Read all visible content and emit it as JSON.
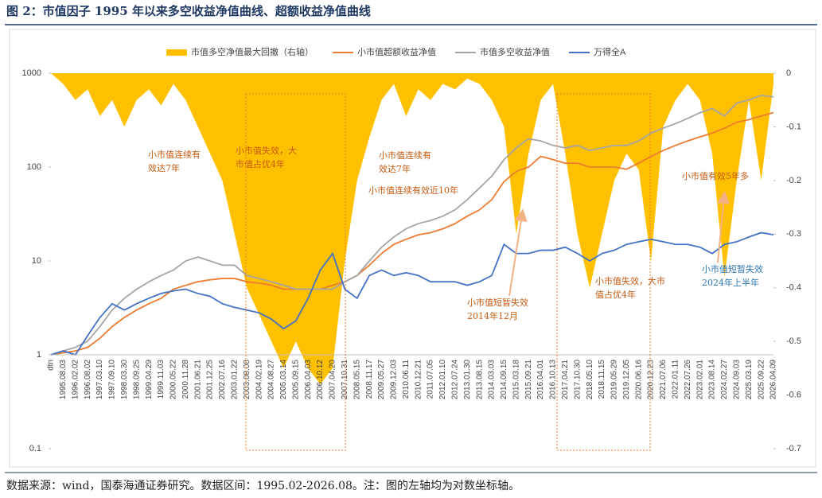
{
  "chart_data": {
    "type": "line",
    "title": "图 2：市值因子 1995 年以来多空收益净值曲线、超额收益净值曲线",
    "source": "数据来源：wind，国泰海通证券研究。数据区间：1995.02-2026.08。注：图的左轴均为对数坐标轴。",
    "categories": [
      "dtn",
      "1995.08.03",
      "1996.02.02",
      "1996.08.02",
      "1997.03.10",
      "1997.09.10",
      "1998.03.30",
      "1998.09.25",
      "1999.04.29",
      "1999.11.03",
      "2000.05.22",
      "2000.11.28",
      "2001.06.21",
      "2001.12.25",
      "2002.07.16",
      "2003.01.22",
      "2003.08.08",
      "2004.02.19",
      "2004.08.27",
      "2005.03.14",
      "2005.09.15",
      "2006.04.03",
      "2006.10.12",
      "2007.04.20",
      "2007.10.31",
      "2008.05.15",
      "2008.11.17",
      "2009.05.27",
      "2009.12.03",
      "2010.06.11",
      "2010.12.21",
      "2011.07.05",
      "2012.01.10",
      "2012.07.24",
      "2013.01.30",
      "2013.08.15",
      "2014.03.03",
      "2014.09.15",
      "2015.03.18",
      "2015.09.21",
      "2016.04.01",
      "2016.10.13",
      "2017.04.21",
      "2017.10.30",
      "2018.05.10",
      "2018.11.15",
      "2019.05.29",
      "2019.12.05",
      "2020.06.16",
      "2020.12.23",
      "2021.07.06",
      "2022.01.11",
      "2022.07.26",
      "2023.02.01",
      "2023.08.14",
      "2024.02.27",
      "2024.09.03",
      "2025.03.19",
      "2025.09.22",
      "2026.04.09"
    ],
    "series": [
      {
        "name": "市值多空净值最大回撤（右轴）",
        "color": "#ffc000",
        "type": "area",
        "axis": "y2",
        "values": [
          0,
          -0.02,
          -0.05,
          -0.03,
          -0.08,
          -0.05,
          -0.1,
          -0.05,
          -0.03,
          -0.06,
          -0.02,
          -0.05,
          -0.1,
          -0.15,
          -0.2,
          -0.3,
          -0.4,
          -0.45,
          -0.5,
          -0.55,
          -0.5,
          -0.55,
          -0.58,
          -0.55,
          -0.35,
          -0.2,
          -0.12,
          -0.05,
          -0.02,
          -0.08,
          -0.03,
          -0.05,
          -0.02,
          -0.03,
          -0.01,
          -0.02,
          -0.05,
          -0.1,
          -0.3,
          -0.15,
          -0.05,
          -0.02,
          -0.15,
          -0.3,
          -0.4,
          -0.3,
          -0.2,
          -0.15,
          -0.18,
          -0.35,
          -0.1,
          -0.05,
          -0.02,
          -0.05,
          -0.15,
          -0.38,
          -0.2,
          -0.05,
          -0.2,
          -0.02
        ]
      },
      {
        "name": "小市值超额收益净值",
        "color": "#ed7d31",
        "type": "line",
        "values": [
          1,
          1.05,
          1.1,
          1.2,
          1.5,
          2,
          2.5,
          3,
          3.5,
          4,
          5,
          5.5,
          6,
          6.3,
          6.5,
          6.5,
          6,
          5.8,
          5.5,
          5,
          5,
          5,
          5,
          5.5,
          6,
          7,
          9,
          12,
          15,
          17,
          19,
          20,
          22,
          25,
          30,
          35,
          45,
          70,
          90,
          100,
          130,
          120,
          110,
          110,
          100,
          100,
          100,
          95,
          110,
          130,
          150,
          170,
          190,
          210,
          230,
          260,
          300,
          320,
          350,
          380
        ]
      },
      {
        "name": "市值多空收益净值",
        "color": "#a5a5a5",
        "type": "line",
        "values": [
          1,
          1.1,
          1.2,
          1.4,
          2,
          3,
          4,
          5,
          6,
          7,
          8,
          10,
          11,
          10,
          9,
          9,
          7,
          6.5,
          6,
          5.5,
          5,
          5,
          5,
          5,
          6,
          7,
          10,
          14,
          18,
          22,
          25,
          27,
          30,
          35,
          45,
          60,
          80,
          120,
          160,
          200,
          190,
          170,
          160,
          170,
          150,
          160,
          170,
          170,
          190,
          230,
          260,
          290,
          330,
          380,
          420,
          350,
          480,
          520,
          580,
          560
        ]
      },
      {
        "name": "万得全A",
        "color": "#4472c4",
        "type": "line",
        "values": [
          1,
          1.1,
          1.0,
          1.6,
          2.5,
          3.5,
          3.0,
          3.5,
          4.0,
          4.5,
          4.8,
          5.0,
          4.5,
          4.2,
          3.5,
          3.2,
          3.0,
          2.8,
          2.4,
          1.9,
          2.3,
          4,
          8,
          12,
          5,
          4,
          7,
          8,
          7,
          7.5,
          7,
          6,
          6,
          6,
          5.5,
          6,
          7,
          15,
          12,
          12,
          13,
          13,
          14,
          12,
          10,
          12,
          13,
          15,
          16,
          17,
          16,
          15,
          15,
          14,
          12,
          15,
          16,
          18,
          20,
          19
        ]
      }
    ],
    "log_scale": true,
    "ylim": [
      0.1,
      1000
    ],
    "yticks": [
      0.1,
      1,
      10,
      100,
      1000
    ],
    "y2lim": [
      -0.7,
      0
    ],
    "y2ticks": [
      0,
      -0.1,
      -0.2,
      -0.3,
      -0.4,
      -0.5,
      -0.6,
      -0.7
    ],
    "legend": "top",
    "annotations": [
      {
        "lines": [
          "小市值连续有",
          "效达7年"
        ],
        "color": "#c55a11"
      },
      {
        "lines": [
          "小市值失效，大",
          "市值占优4年"
        ],
        "color": "#c55a11"
      },
      {
        "lines": [
          "小市值连续有",
          "效达7年"
        ],
        "color": "#c55a11"
      },
      {
        "lines": [
          "小市值连续有效近10年"
        ],
        "color": "#c55a11"
      },
      {
        "lines": [
          "小市值短暂失效",
          "2014年12月"
        ],
        "color": "#c55a11"
      },
      {
        "lines": [
          "小市值失效，大市",
          "值占优4年"
        ],
        "color": "#c55a11"
      },
      {
        "lines": [
          "小市值有效5年多"
        ],
        "color": "#c55a11"
      },
      {
        "lines": [
          "小市值短暂失效",
          "2024年上半年"
        ],
        "color": "#2e75b6"
      }
    ]
  }
}
